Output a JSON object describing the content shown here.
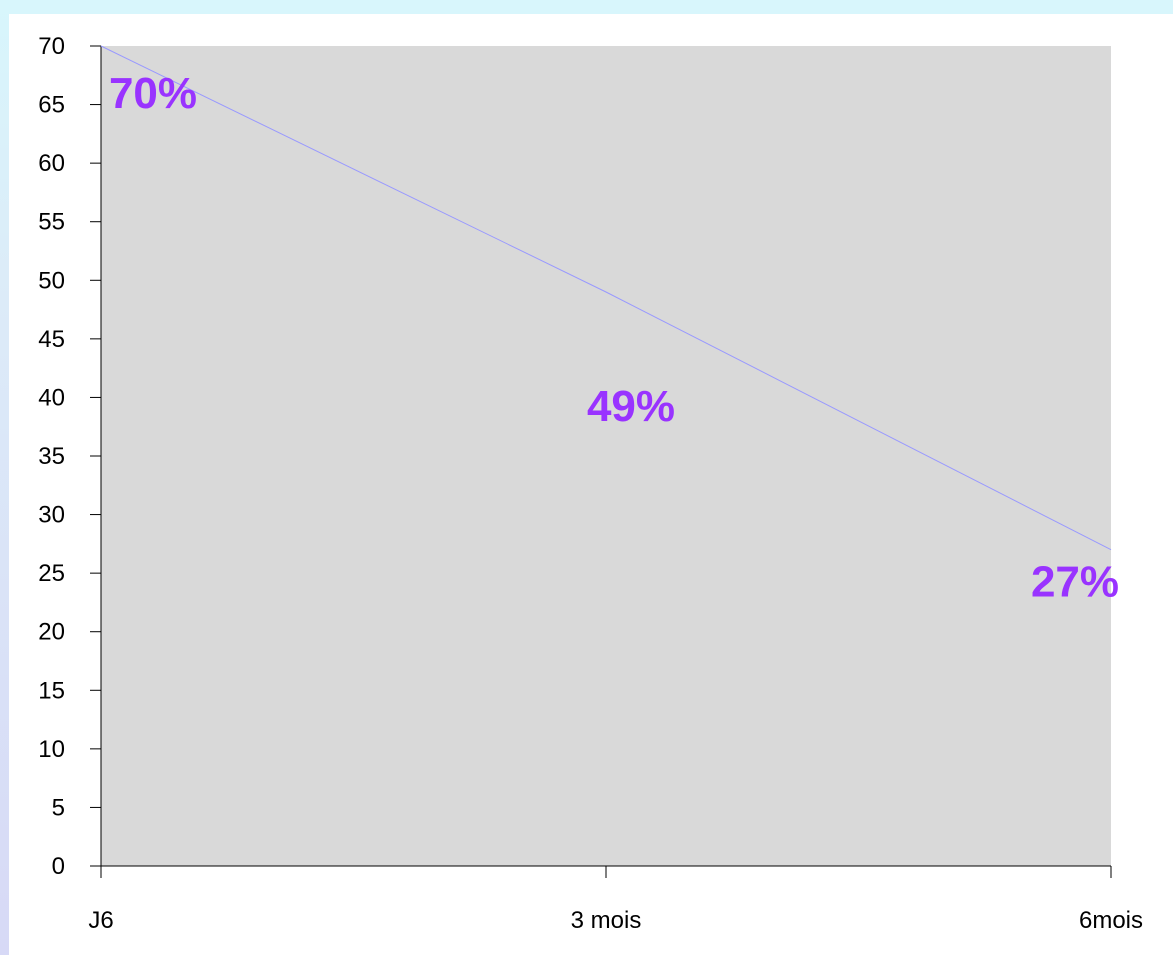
{
  "colors": {
    "plot_background": "#d9d9d9",
    "line": "#9999ff",
    "data_label": "#9933ff",
    "axis": "#000000"
  },
  "chart_data": {
    "type": "line",
    "title": "",
    "xlabel": "",
    "ylabel": "",
    "categories": [
      "J6",
      "3 mois",
      "6mois"
    ],
    "series": [
      {
        "values": [
          70,
          49,
          27
        ],
        "data_labels": [
          "70%",
          "49%",
          "27%"
        ]
      }
    ],
    "ylim": [
      0,
      70
    ],
    "ytick_step": 5,
    "grid": false,
    "legend": "none"
  }
}
